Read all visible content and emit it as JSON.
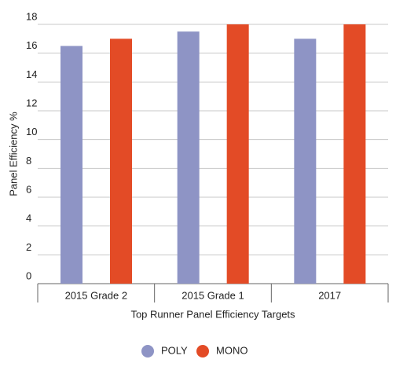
{
  "chart_data": {
    "type": "bar",
    "x_label": "Top Runner Panel Efficiency Targets",
    "y_label": "Panel Efficiency %",
    "categories": [
      "2015 Grade 2",
      "2015 Grade 1",
      "2017"
    ],
    "series": [
      {
        "name": "POLY",
        "color": "#8e94c5",
        "values": [
          16.5,
          17.5,
          17
        ]
      },
      {
        "name": "MONO",
        "color": "#e34b26",
        "values": [
          17,
          18,
          18
        ]
      }
    ],
    "ylim": [
      0,
      18
    ],
    "yticks": [
      0,
      2,
      4,
      6,
      8,
      10,
      12,
      14,
      16,
      18
    ],
    "grid": true,
    "legend": "bottom"
  }
}
